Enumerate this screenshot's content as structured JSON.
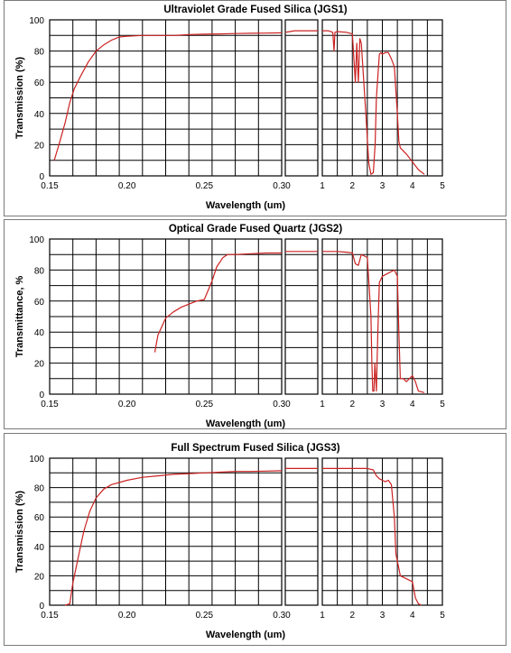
{
  "colors": {
    "curve": "#cc2222",
    "grid": "#000000",
    "axis": "#000000",
    "frame": "#7a7a7a"
  },
  "chart_data": [
    {
      "type": "line",
      "title": "Ultraviolet Grade Fused Silica (JGS1)",
      "xlabel": "Wavelength (um)",
      "ylabel": "Transmission (%)",
      "ylim": [
        0,
        100
      ],
      "yticks": [
        "0",
        "20",
        "40",
        "60",
        "80",
        "100"
      ],
      "grid": true,
      "segments": [
        {
          "xlim": [
            0.15,
            0.3
          ],
          "xticks": [
            "0.15",
            "0.20",
            "0.25",
            "0.30"
          ],
          "series": [
            {
              "x": [
                0.153,
                0.156,
                0.16,
                0.163,
                0.166,
                0.17,
                0.175,
                0.18,
                0.185,
                0.19,
                0.195,
                0.2,
                0.21,
                0.22,
                0.23,
                0.24,
                0.25,
                0.26,
                0.27,
                0.28,
                0.29,
                0.3
              ],
              "y": [
                10,
                20,
                34,
                47,
                56,
                64,
                73,
                80,
                84,
                87,
                89,
                89.5,
                90,
                90,
                90,
                90.5,
                90.8,
                91,
                91.2,
                91.4,
                91.5,
                91.7
              ]
            }
          ]
        },
        {
          "xlim": [
            0.3,
            1.0
          ],
          "xticks": [
            "",
            ""
          ],
          "series": [
            {
              "x": [
                0.3,
                0.4,
                0.5,
                0.6,
                0.7,
                0.8,
                0.9,
                1.0
              ],
              "y": [
                92,
                92.5,
                93,
                93,
                93,
                93,
                93,
                93
              ]
            }
          ]
        },
        {
          "xlim": [
            1,
            5
          ],
          "xticks": [
            "1",
            "2",
            "3",
            "4",
            "5"
          ],
          "series": [
            {
              "x": [
                1.0,
                1.2,
                1.35,
                1.39,
                1.42,
                1.5,
                1.8,
                2.0,
                2.1,
                2.15,
                2.2,
                2.25,
                2.3,
                2.45,
                2.55,
                2.62,
                2.7,
                2.76,
                2.8,
                2.9,
                2.95,
                3.0,
                3.1,
                3.2,
                3.3,
                3.4,
                3.5,
                3.55,
                3.6,
                3.8,
                4.0,
                4.2,
                4.4
              ],
              "y": [
                93,
                93,
                92,
                80,
                92,
                92.5,
                92,
                91,
                60,
                85,
                60,
                88,
                85,
                40,
                8,
                1,
                2,
                20,
                50,
                78,
                79,
                78,
                79,
                79,
                75,
                70,
                40,
                22,
                18,
                14,
                9,
                4,
                1
              ]
            }
          ]
        }
      ]
    },
    {
      "type": "line",
      "title": "Optical Grade Fused Quartz  (JGS2)",
      "xlabel": "Wavelength (um)",
      "ylabel": "Transmittance, %",
      "ylim": [
        0,
        100
      ],
      "yticks": [
        "0",
        "20",
        "40",
        "60",
        "80",
        "100"
      ],
      "grid": true,
      "segments": [
        {
          "xlim": [
            0.15,
            0.3
          ],
          "xticks": [
            "0.15",
            "0.20",
            "0.25",
            "0.30"
          ],
          "series": [
            {
              "x": [
                0.218,
                0.22,
                0.225,
                0.23,
                0.235,
                0.24,
                0.245,
                0.25,
                0.255,
                0.258,
                0.262,
                0.265,
                0.27,
                0.28,
                0.29,
                0.3
              ],
              "y": [
                27,
                38,
                49,
                53,
                56,
                58,
                60,
                61,
                73,
                82,
                88,
                90,
                90,
                90.5,
                91,
                91
              ]
            }
          ]
        },
        {
          "xlim": [
            0.3,
            1.0
          ],
          "xticks": [
            "",
            ""
          ],
          "series": [
            {
              "x": [
                0.3,
                0.4,
                0.6,
                0.8,
                1.0
              ],
              "y": [
                92,
                92,
                92,
                92,
                92
              ]
            }
          ]
        },
        {
          "xlim": [
            1,
            5
          ],
          "xticks": [
            "1",
            "2",
            "3",
            "4",
            "5"
          ],
          "series": [
            {
              "x": [
                1.0,
                1.5,
                1.8,
                2.0,
                2.1,
                2.2,
                2.3,
                2.4,
                2.5,
                2.62,
                2.65,
                2.68,
                2.72,
                2.75,
                2.8,
                2.85,
                2.9,
                3.0,
                3.2,
                3.4,
                3.5,
                3.55,
                3.6,
                3.7,
                3.8,
                4.0,
                4.1,
                4.2,
                4.4
              ],
              "y": [
                92,
                92,
                91.5,
                91,
                84,
                83,
                90,
                89,
                88,
                50,
                20,
                2,
                2,
                20,
                2,
                40,
                72,
                76,
                78,
                80,
                76,
                40,
                10,
                10,
                8,
                12,
                8,
                2,
                1
              ]
            }
          ]
        }
      ]
    },
    {
      "type": "line",
      "title": "Full Spectrum Fused Silica (JGS3)",
      "xlabel": "Wavelength (um)",
      "ylabel": "Transmission (%)",
      "ylim": [
        0,
        100
      ],
      "yticks": [
        "0",
        "20",
        "40",
        "60",
        "80",
        "100"
      ],
      "grid": true,
      "segments": [
        {
          "xlim": [
            0.15,
            0.3
          ],
          "xticks": [
            "0.15",
            "0.20",
            "0.25",
            "0.30"
          ],
          "series": [
            {
              "x": [
                0.16,
                0.163,
                0.165,
                0.168,
                0.172,
                0.176,
                0.18,
                0.185,
                0.19,
                0.2,
                0.21,
                0.22,
                0.23,
                0.24,
                0.25,
                0.26,
                0.27,
                0.28,
                0.29,
                0.3
              ],
              "y": [
                0,
                1,
                15,
                30,
                50,
                64,
                73,
                79,
                82,
                85,
                87,
                88,
                89,
                89.5,
                90,
                90.5,
                91,
                91,
                91.2,
                91.5
              ]
            }
          ]
        },
        {
          "xlim": [
            0.3,
            1.0
          ],
          "xticks": [
            "",
            ""
          ],
          "series": [
            {
              "x": [
                0.3,
                0.5,
                0.7,
                0.9,
                1.0
              ],
              "y": [
                93,
                93,
                93,
                93,
                93
              ]
            }
          ]
        },
        {
          "xlim": [
            1,
            5
          ],
          "xticks": [
            "1",
            "2",
            "3",
            "4",
            "5"
          ],
          "series": [
            {
              "x": [
                1.0,
                1.5,
                2.0,
                2.5,
                2.7,
                2.8,
                2.9,
                3.0,
                3.1,
                3.2,
                3.3,
                3.4,
                3.45,
                3.5,
                3.55,
                3.6,
                3.8,
                4.0,
                4.1,
                4.2,
                4.3
              ],
              "y": [
                93,
                93,
                93,
                93,
                92,
                88,
                86,
                85,
                84,
                85,
                82,
                60,
                35,
                30,
                25,
                20,
                18,
                16,
                5,
                1,
                0
              ]
            }
          ]
        }
      ]
    }
  ]
}
